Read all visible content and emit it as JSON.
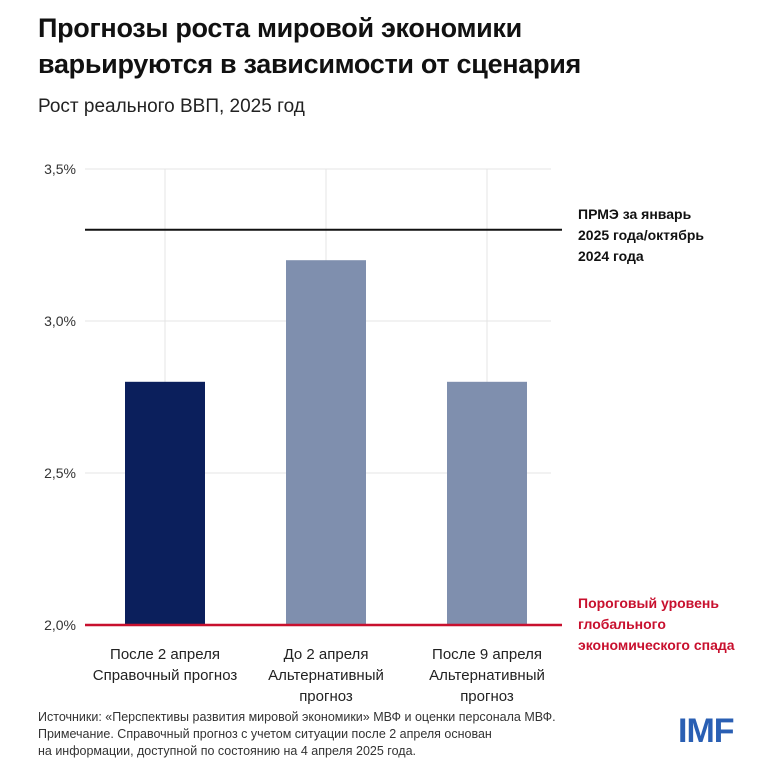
{
  "header": {
    "title_line1": "Прогнозы роста мировой экономики",
    "title_line2": "варьируются в зависимости от сценария",
    "subtitle": "Рост реального ВВП, 2025 год"
  },
  "chart_data": {
    "type": "bar",
    "title": "Прогнозы роста мировой экономики варьируются в зависимости от сценария",
    "ylabel": "Рост реального ВВП, 2025 год",
    "ylim": [
      2.0,
      3.5
    ],
    "yticks": [
      2.0,
      2.5,
      3.0,
      3.5
    ],
    "ytick_labels": [
      "2,0%",
      "2,5%",
      "3,0%",
      "3,5%"
    ],
    "grid": true,
    "categories": [
      [
        "После 2 апреля",
        "Справочный прогноз"
      ],
      [
        "До 2 апреля",
        "Альтернативный",
        "прогноз"
      ],
      [
        "После 9 апреля",
        "Альтернативный",
        "прогноз"
      ]
    ],
    "values": [
      2.8,
      3.2,
      2.8
    ],
    "bar_colors": [
      "#0b1f5c",
      "#7f8fae",
      "#7f8fae"
    ],
    "reference_lines": [
      {
        "value": 3.3,
        "color": "#111111",
        "label": [
          "ПРМЭ за январь",
          "2025 года/октябрь",
          "2024 года"
        ]
      },
      {
        "value": 2.0,
        "color": "#c8102e",
        "label": [
          "Пороговый уровень",
          "глобального",
          "экономического спада"
        ]
      }
    ]
  },
  "footer": {
    "line1": "Источники: «Перспективы развития мировой экономики» МВФ и оценки персонала МВФ.",
    "line2": "Примечание. Справочный прогноз с учетом ситуации после 2 апреля основан",
    "line3": "на информации, доступной по состоянию на 4 апреля 2025 года."
  },
  "logo": {
    "text": "IMF",
    "color": "#2a5fb3"
  }
}
